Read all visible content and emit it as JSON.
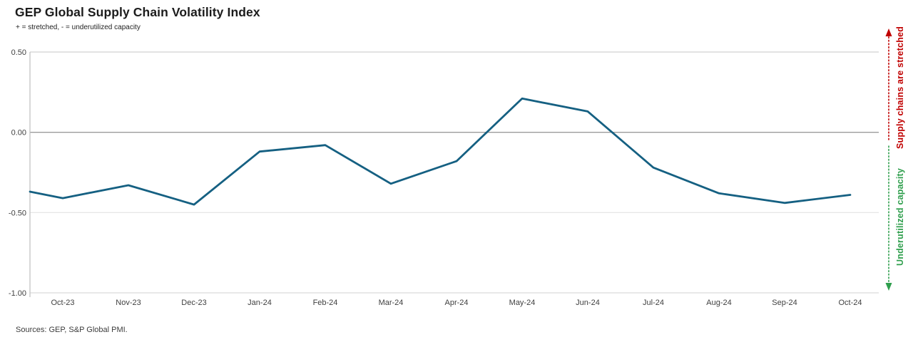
{
  "header": {
    "title": "GEP Global Supply Chain Volatility Index",
    "subtitle": "+ = stretched, - = underutilized capacity"
  },
  "footer": {
    "source_note": "Sources: GEP, S&P Global PMI."
  },
  "annotations": {
    "stretched": {
      "label": "Supply chains are stretched",
      "color": "#c00000",
      "direction": "up"
    },
    "underutilized": {
      "label": "Underutilized capacity",
      "color": "#2e9e4c",
      "direction": "down"
    }
  },
  "chart_data": {
    "type": "line",
    "title": "GEP Global Supply Chain Volatility Index",
    "subtitle": "+ = stretched, - = underutilized capacity",
    "categories": [
      "Oct-23",
      "Nov-23",
      "Dec-23",
      "Jan-24",
      "Feb-24",
      "Mar-24",
      "Apr-24",
      "May-24",
      "Jun-24",
      "Jul-24",
      "Aug-24",
      "Sep-24",
      "Oct-24"
    ],
    "values": [
      -0.41,
      -0.33,
      -0.45,
      -0.12,
      -0.08,
      -0.32,
      -0.18,
      0.21,
      0.13,
      -0.22,
      -0.38,
      -0.44,
      -0.39
    ],
    "lead_in_value_at_left_axis": -0.37,
    "xlabel": "",
    "ylabel": "",
    "ylim": [
      -1.0,
      0.5
    ],
    "yticks": [
      0.5,
      0.0,
      -0.5,
      -1.0
    ],
    "ytick_labels": [
      "0.50",
      "0.00",
      "-0.50",
      "-1.00"
    ],
    "grid": "horizontal",
    "legend": "none",
    "markers": "none",
    "line_color": "#156082",
    "zero_line_color": "#9b9b9b",
    "gridline_color": "#d9d9d9",
    "axis_line_color": "#bfbfbf",
    "tick_label_color": "#3f3f3f"
  }
}
